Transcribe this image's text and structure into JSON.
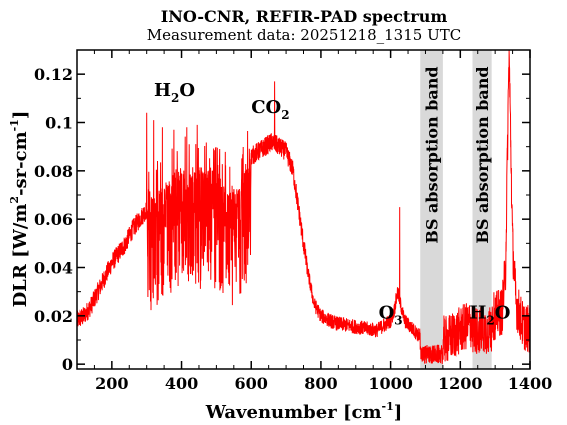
{
  "chart_data": {
    "type": "line",
    "title": "INO-CNR, REFIR-PAD spectrum",
    "subtitle": "Measurement data: 20251218_1315 UTC",
    "xlabel": {
      "text": "Wavenumber [cm",
      "sup": "-1",
      "end": "]"
    },
    "ylabel": {
      "t1": "DLR [W/m",
      "s1": "2",
      "t2": "-sr-cm",
      "s2": "-1",
      "t3": "]"
    },
    "xlim": [
      100,
      1400
    ],
    "ylim": [
      -0.002,
      0.13
    ],
    "xticks": [
      200,
      400,
      600,
      800,
      1000,
      1200,
      1400
    ],
    "xtick_labels": [
      "200",
      "400",
      "600",
      "800",
      "1000",
      "1200",
      "1400"
    ],
    "yticks": [
      0,
      0.02,
      0.04,
      0.06,
      0.08,
      0.1,
      0.12
    ],
    "ytick_labels": [
      "0",
      "0.02",
      "0.04",
      "0.06",
      "0.08",
      "0.1",
      "0.12"
    ],
    "series_color": "#ff0000",
    "band_color": "#d9d9d9",
    "bands": [
      {
        "x0": 1085,
        "x1": 1150,
        "label": "BS absorption band"
      },
      {
        "x0": 1235,
        "x1": 1290,
        "label": "BS absorption band"
      }
    ],
    "annotations": [
      {
        "main": "H",
        "sub": "2",
        "rest": "O",
        "x": 380,
        "y": 0.111
      },
      {
        "main": "CO",
        "sub": "2",
        "rest": "",
        "x": 655,
        "y": 0.104
      },
      {
        "main": "O",
        "sub": "3",
        "rest": "",
        "x": 1000,
        "y": 0.019
      },
      {
        "main": "H",
        "sub": "2",
        "rest": "O",
        "x": 1285,
        "y": 0.019
      }
    ],
    "series": [
      {
        "x": [
          100,
          120,
          140,
          160,
          180,
          200,
          220,
          240,
          260,
          280,
          300,
          320,
          340,
          360,
          380,
          400,
          420,
          440,
          460,
          480,
          500,
          520,
          540,
          560,
          580,
          600,
          620,
          640,
          660,
          680,
          700,
          720,
          740,
          760,
          780,
          800,
          840,
          880,
          920,
          960,
          1000,
          1010,
          1020,
          1030,
          1040,
          1060,
          1080,
          1160,
          1180,
          1200,
          1220,
          1300,
          1320,
          1330,
          1340,
          1350,
          1360,
          1380,
          1400
        ],
        "y": [
          0.018,
          0.02,
          0.024,
          0.03,
          0.036,
          0.042,
          0.046,
          0.05,
          0.056,
          0.06,
          0.064,
          0.068,
          0.072,
          0.074,
          0.078,
          0.08,
          0.08,
          0.078,
          0.079,
          0.08,
          0.078,
          0.075,
          0.07,
          0.072,
          0.08,
          0.086,
          0.088,
          0.09,
          0.092,
          0.09,
          0.088,
          0.08,
          0.06,
          0.04,
          0.025,
          0.02,
          0.017,
          0.016,
          0.015,
          0.014,
          0.018,
          0.022,
          0.03,
          0.024,
          0.018,
          0.015,
          0.012,
          0.01,
          0.012,
          0.014,
          0.016,
          0.02,
          0.022,
          0.04,
          0.13,
          0.05,
          0.025,
          0.016,
          0.014
        ],
        "peaks": [
          {
            "x": 300,
            "y": 0.104
          },
          {
            "x": 320,
            "y": 0.101
          },
          {
            "x": 345,
            "y": 0.098
          },
          {
            "x": 378,
            "y": 0.097
          },
          {
            "x": 415,
            "y": 0.098
          },
          {
            "x": 445,
            "y": 0.099
          },
          {
            "x": 667,
            "y": 0.117
          },
          {
            "x": 1026,
            "y": 0.065
          },
          {
            "x": 1340,
            "y": 0.13
          }
        ]
      }
    ]
  }
}
